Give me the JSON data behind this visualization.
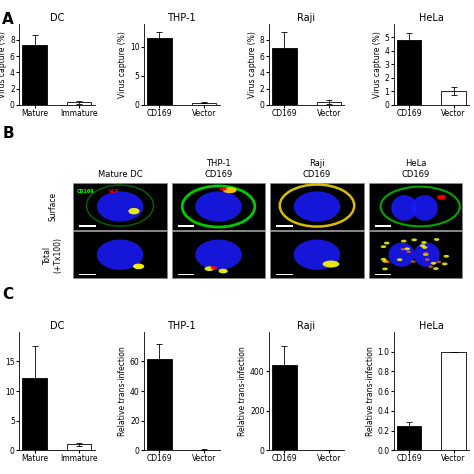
{
  "panel_A": {
    "charts": [
      {
        "title": "DC",
        "categories": [
          "Mature",
          "Immature"
        ],
        "values": [
          7.4,
          0.3
        ],
        "errors": [
          1.2,
          0.15
        ],
        "colors": [
          "black",
          "white"
        ],
        "ylim": [
          0,
          10
        ],
        "yticks": [
          0,
          2,
          4,
          6,
          8
        ],
        "ylabel": "Virus capture (%)"
      },
      {
        "title": "THP-1",
        "categories": [
          "CD169",
          "Vector"
        ],
        "values": [
          11.5,
          0.4
        ],
        "errors": [
          1.0,
          0.1
        ],
        "colors": [
          "black",
          "white"
        ],
        "ylim": [
          0,
          14
        ],
        "yticks": [
          0,
          5,
          10
        ],
        "ylabel": "Virus capture (%)"
      },
      {
        "title": "Raji",
        "categories": [
          "CD169",
          "Vector"
        ],
        "values": [
          7.0,
          0.35
        ],
        "errors": [
          2.0,
          0.2
        ],
        "colors": [
          "black",
          "white"
        ],
        "ylim": [
          0,
          10
        ],
        "yticks": [
          0,
          2,
          4,
          6,
          8
        ],
        "ylabel": "Virus capture (%)"
      },
      {
        "title": "HeLa",
        "categories": [
          "CD169",
          "Vector"
        ],
        "values": [
          4.8,
          1.0
        ],
        "errors": [
          0.5,
          0.3
        ],
        "colors": [
          "black",
          "white"
        ],
        "ylim": [
          0,
          6
        ],
        "yticks": [
          0,
          1,
          2,
          3,
          4,
          5
        ],
        "ylabel": "Virus capture (%)"
      }
    ]
  },
  "panel_B": {
    "col_labels": [
      "Mature DC",
      "THP-1\nCD169",
      "Raji\nCD169",
      "HeLa\nCD169"
    ],
    "row_labels": [
      "Surface",
      "Total\n(+Tx100)"
    ]
  },
  "panel_C": {
    "charts": [
      {
        "title": "DC",
        "categories": [
          "Mature",
          "Immature"
        ],
        "values": [
          12.2,
          1.0
        ],
        "errors": [
          5.5,
          0.3
        ],
        "colors": [
          "black",
          "white"
        ],
        "ylim": [
          0,
          20
        ],
        "yticks": [
          0,
          5,
          10,
          15
        ],
        "ylabel": "Relative trans-infection"
      },
      {
        "title": "THP-1",
        "categories": [
          "CD169",
          "Vector"
        ],
        "values": [
          62.0,
          0.5
        ],
        "errors": [
          10.0,
          0.2
        ],
        "colors": [
          "black",
          "white"
        ],
        "ylim": [
          0,
          80
        ],
        "yticks": [
          0,
          20,
          40,
          60
        ],
        "ylabel": "Relative trans-infection"
      },
      {
        "title": "Raji",
        "categories": [
          "CD169",
          "Vector"
        ],
        "values": [
          430.0,
          3.0
        ],
        "errors": [
          100.0,
          1.0
        ],
        "colors": [
          "black",
          "white"
        ],
        "ylim": [
          0,
          600
        ],
        "yticks": [
          0,
          200,
          400
        ],
        "ylabel": "Relative trans-infection"
      },
      {
        "title": "HeLa",
        "categories": [
          "CD169",
          "Vector"
        ],
        "values": [
          0.25,
          1.0
        ],
        "errors": [
          0.04,
          0.0
        ],
        "colors": [
          "black",
          "white"
        ],
        "ylim": [
          0,
          1.2
        ],
        "yticks": [
          0.0,
          0.2,
          0.4,
          0.6,
          0.8,
          1.0
        ],
        "ylabel": "Relative trans-infection"
      }
    ]
  },
  "bg_color": "#ffffff",
  "panel_label_fontsize": 11,
  "title_fontsize": 7,
  "tick_fontsize": 5.5,
  "ylabel_fontsize": 5.5
}
